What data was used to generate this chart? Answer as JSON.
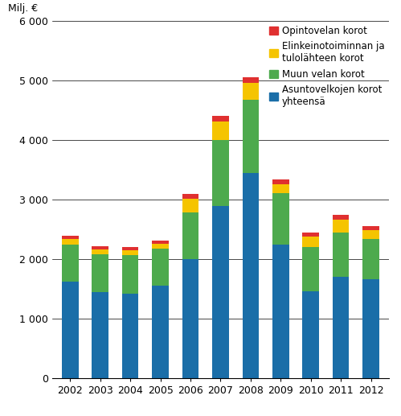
{
  "years": [
    2002,
    2003,
    2004,
    2005,
    2006,
    2007,
    2008,
    2009,
    2010,
    2011,
    2012
  ],
  "asuntovelan_korot": [
    1630,
    1450,
    1420,
    1560,
    2000,
    2890,
    3450,
    2240,
    1470,
    1710,
    1660
  ],
  "muun_velan_korot": [
    620,
    640,
    650,
    620,
    780,
    1110,
    1220,
    870,
    730,
    740,
    680
  ],
  "elinkeinotoiminnan_korot": [
    90,
    80,
    80,
    80,
    240,
    310,
    290,
    155,
    175,
    215,
    155
  ],
  "opintovelan_korot": [
    55,
    55,
    55,
    55,
    80,
    90,
    100,
    75,
    75,
    75,
    65
  ],
  "colors": {
    "asuntovelan": "#1a6ea8",
    "muun_velan": "#4daa4d",
    "elinkeinotoiminnan": "#f5c400",
    "opintovelan": "#e03030"
  },
  "legend_labels": [
    "Opintovelan korot",
    "Elinkeinotoiminnan ja\ntulolähteen korot",
    "Muun velan korot",
    "Asuntovelkojen korot\nyhteensä"
  ],
  "ylabel": "Milj. €",
  "ylim": [
    0,
    6000
  ],
  "yticks": [
    0,
    1000,
    2000,
    3000,
    4000,
    5000,
    6000
  ],
  "tick_fontsize": 9,
  "legend_fontsize": 8.5,
  "bar_width": 0.55
}
